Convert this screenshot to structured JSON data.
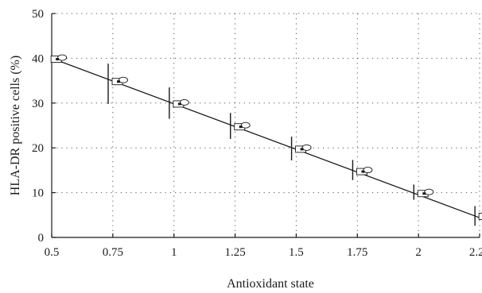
{
  "chart_data": {
    "type": "scatter",
    "xlabel": "Antioxidant state",
    "ylabel": "HLA-DR positive cells (%)",
    "xlim": [
      0.5,
      2.25
    ],
    "ylim": [
      0,
      50
    ],
    "x_ticks": [
      0.5,
      0.75,
      1,
      1.25,
      1.5,
      1.75,
      2,
      2.25
    ],
    "x_tick_labels": [
      "0.5",
      "0.75",
      "1",
      "1.25",
      "1.5",
      "1.75",
      "2",
      "2.25"
    ],
    "y_ticks": [
      0,
      10,
      20,
      30,
      40,
      50
    ],
    "y_tick_labels": [
      "0",
      "10",
      "20",
      "30",
      "40",
      "50"
    ],
    "grid": true,
    "series": [
      {
        "points": [
          {
            "x": 0.52,
            "y": 39.8,
            "err_low": 39.8,
            "err_high": 39.8
          },
          {
            "x": 0.77,
            "y": 34.8,
            "err_low": 29.8,
            "err_high": 38.8
          },
          {
            "x": 1.02,
            "y": 29.8,
            "err_low": 26.5,
            "err_high": 33.5
          },
          {
            "x": 1.27,
            "y": 24.7,
            "err_low": 22.0,
            "err_high": 27.8
          },
          {
            "x": 1.52,
            "y": 19.7,
            "err_low": 17.2,
            "err_high": 22.5
          },
          {
            "x": 1.77,
            "y": 14.7,
            "err_low": 12.8,
            "err_high": 17.3
          },
          {
            "x": 2.02,
            "y": 9.8,
            "err_low": 8.4,
            "err_high": 11.8
          },
          {
            "x": 2.27,
            "y": 4.7,
            "err_low": 2.6,
            "err_high": 7.0
          }
        ]
      }
    ],
    "fit_line": {
      "x": [
        0.5,
        2.25
      ],
      "y": [
        40.0,
        4.4
      ]
    }
  }
}
